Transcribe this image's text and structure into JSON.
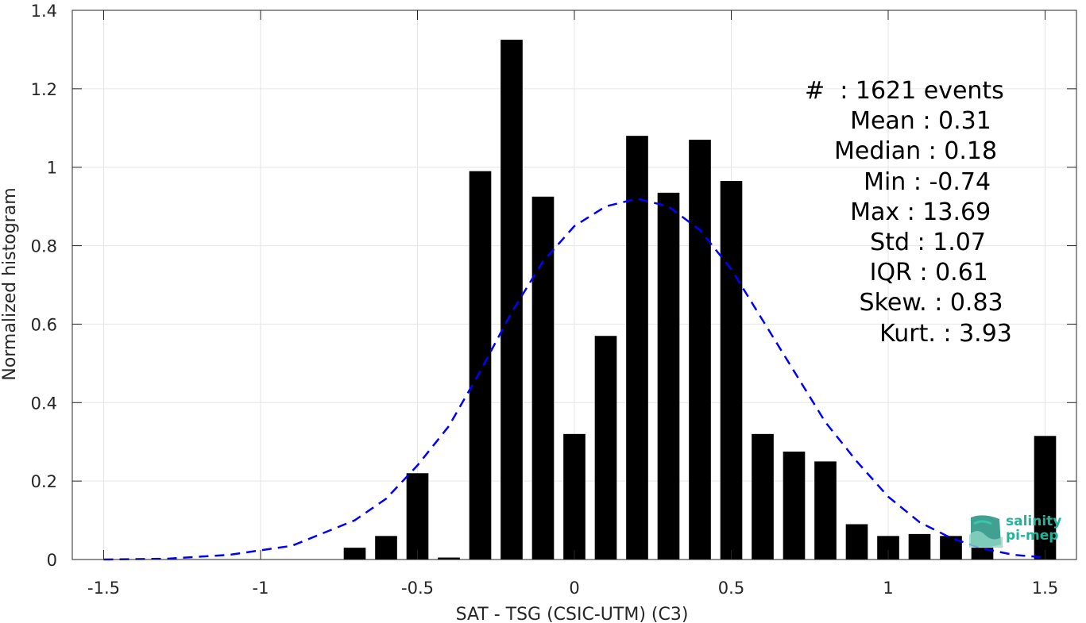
{
  "chart_data": {
    "type": "bar",
    "xlabel": "SAT - TSG (CSIC-UTM) (C3)",
    "ylabel": "Normalized histogram",
    "xlim": [
      -1.6,
      1.6
    ],
    "ylim": [
      0,
      1.4
    ],
    "xticks": [
      -1.5,
      -1,
      -0.5,
      0,
      0.5,
      1,
      1.5
    ],
    "xtick_labels": [
      "-1.5",
      "-1",
      "-0.5",
      "0",
      "0.5",
      "1",
      "1.5"
    ],
    "yticks": [
      0,
      0.2,
      0.4,
      0.6,
      0.8,
      1,
      1.2,
      1.4
    ],
    "ytick_labels": [
      "0",
      "0.2",
      "0.4",
      "0.6",
      "0.8",
      "1",
      "1.2",
      "1.4"
    ],
    "grid": true,
    "bar_color": "#000000",
    "bars": {
      "x": [
        -0.7,
        -0.6,
        -0.5,
        -0.4,
        -0.3,
        -0.2,
        -0.1,
        0.0,
        0.1,
        0.2,
        0.3,
        0.4,
        0.5,
        0.6,
        0.7,
        0.8,
        0.9,
        1.0,
        1.1,
        1.2,
        1.3,
        1.5
      ],
      "values": [
        0.03,
        0.06,
        0.22,
        0.005,
        0.99,
        1.325,
        0.925,
        0.32,
        0.57,
        1.08,
        0.935,
        1.07,
        0.965,
        0.32,
        0.275,
        0.25,
        0.09,
        0.06,
        0.065,
        0.06,
        0.03,
        0.315
      ]
    },
    "fit_curve": {
      "style": "dashed",
      "color": "#0000ff",
      "x": [
        -1.5,
        -1.3,
        -1.1,
        -0.9,
        -0.7,
        -0.6,
        -0.5,
        -0.4,
        -0.3,
        -0.2,
        -0.1,
        0.0,
        0.1,
        0.2,
        0.3,
        0.4,
        0.5,
        0.6,
        0.7,
        0.8,
        0.9,
        1.0,
        1.1,
        1.2,
        1.3,
        1.4,
        1.5
      ],
      "y": [
        0.0,
        0.002,
        0.012,
        0.035,
        0.1,
        0.155,
        0.24,
        0.34,
        0.48,
        0.63,
        0.76,
        0.85,
        0.9,
        0.92,
        0.9,
        0.84,
        0.74,
        0.61,
        0.48,
        0.35,
        0.25,
        0.16,
        0.095,
        0.055,
        0.028,
        0.012,
        0.005
      ]
    }
  },
  "stats": [
    "#  : 1621 events",
    "  Mean : 0.31",
    "Median : 0.18",
    "  Min : -0.74",
    "  Max : 13.69",
    "    Std : 1.07",
    "   IQR : 0.61",
    " Skew. : 0.83",
    "  Kurt. : 3.93"
  ],
  "logo": {
    "line1": "salinity",
    "line2": "pi-mep",
    "color": "#23b39a"
  }
}
